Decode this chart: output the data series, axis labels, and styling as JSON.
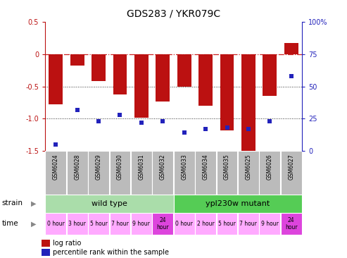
{
  "title": "GDS283 / YKR079C",
  "samples": [
    "GSM6024",
    "GSM6028",
    "GSM6029",
    "GSM6030",
    "GSM6031",
    "GSM6032",
    "GSM6033",
    "GSM6034",
    "GSM6035",
    "GSM6025",
    "GSM6026",
    "GSM6027"
  ],
  "log_ratio": [
    -0.78,
    -0.18,
    -0.42,
    -0.62,
    -0.98,
    -0.73,
    -0.5,
    -0.8,
    -1.18,
    -1.52,
    -0.65,
    0.17
  ],
  "percentile": [
    5,
    32,
    23,
    28,
    22,
    23,
    14,
    17,
    18,
    17,
    23,
    58
  ],
  "ylim_left": [
    -1.5,
    0.5
  ],
  "ylim_right": [
    0,
    100
  ],
  "bar_color": "#BB1111",
  "dot_color": "#2222BB",
  "hline_color": "#CC2222",
  "dotted_color": "#333333",
  "plot_bg": "#FFFFFF",
  "strain_wt_label": "wild type",
  "strain_mut_label": "ypl230w mutant",
  "strain_wt_color": "#AADDAA",
  "strain_mut_color": "#55CC55",
  "time_labels_wt": [
    "0 hour",
    "3 hour",
    "5 hour",
    "7 hour",
    "9 hour",
    "24\nhour"
  ],
  "time_labels_mut": [
    "0 hour",
    "2 hour",
    "5 hour",
    "7 hour",
    "9 hour",
    "24\nhour"
  ],
  "time_bg_normal": "#FFAAFF",
  "time_bg_24h": "#DD44DD",
  "tick_label_bg": "#BBBBBB",
  "legend_log_ratio": "log ratio",
  "legend_percentile": "percentile rank within the sample",
  "bar_width": 0.65,
  "right_ticks": [
    0,
    25,
    50,
    75,
    100
  ],
  "right_tick_labels": [
    "0",
    "25",
    "50",
    "75",
    "100%"
  ],
  "left_ticks": [
    -1.5,
    -1.0,
    -0.5,
    0.0,
    0.5
  ]
}
